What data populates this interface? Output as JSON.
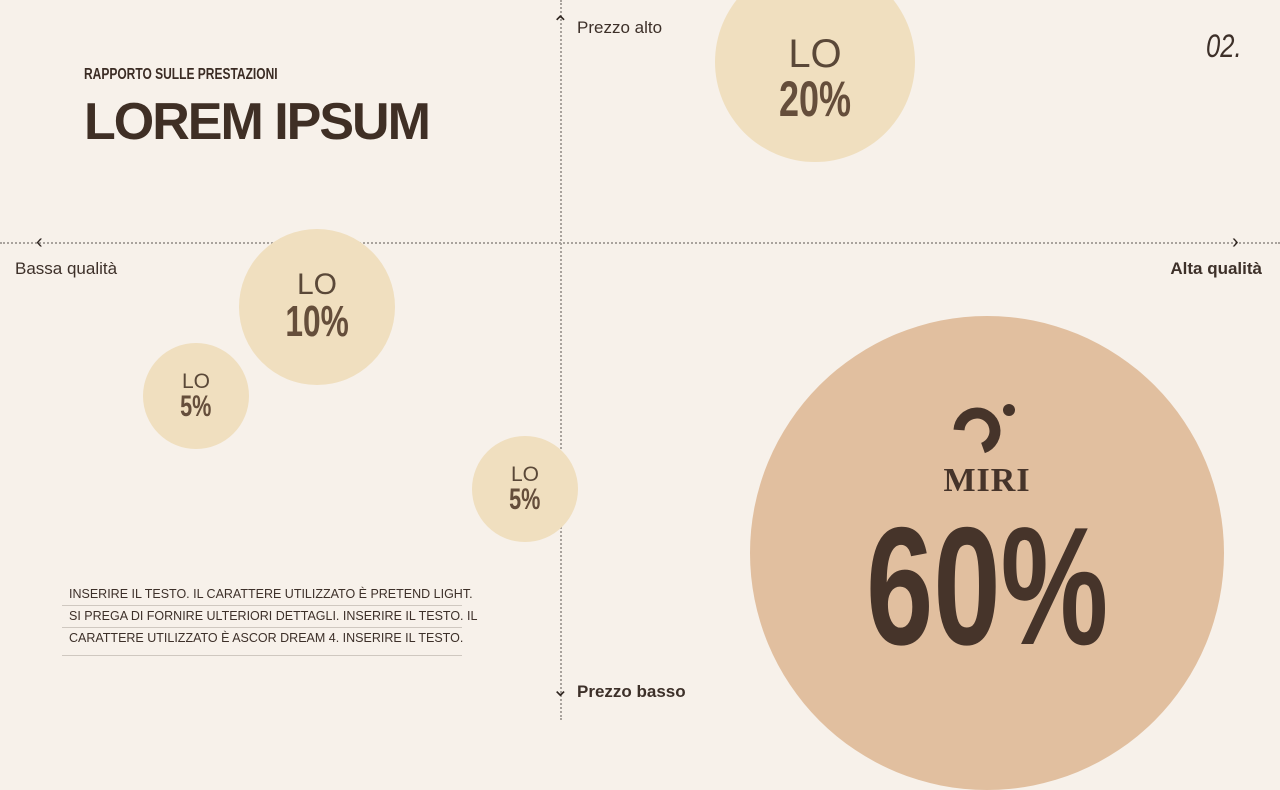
{
  "header": {
    "subtitle": "RAPPORTO SULLE PRESTAZIONI",
    "title": "LOREM IPSUM",
    "page_number": "02."
  },
  "axes": {
    "top": "Prezzo alto",
    "bottom": "Prezzo basso",
    "left": "Bassa qualità",
    "right": "Alta qualità"
  },
  "bubbles": [
    {
      "label": "LO",
      "value": "20%",
      "color": "#f0dfbf"
    },
    {
      "label": "LO",
      "value": "10%",
      "color": "#f0dfbf"
    },
    {
      "label": "LO",
      "value": "5%",
      "color": "#f0dfbf"
    },
    {
      "label": "LO",
      "value": "5%",
      "color": "#f0dfbf"
    },
    {
      "label": "MIRI",
      "value": "60%",
      "color": "#e1bf9f"
    }
  ],
  "note_lines": [
    "INSERIRE IL TESTO. IL CARATTERE UTILIZZATO È PRETEND LIGHT.",
    "SI PREGA DI FORNIRE ULTERIORI DETTAGLI. INSERIRE IL TESTO. IL",
    "CARATTERE UTILIZZATO È ASCOR DREAM 4. INSERIRE IL TESTO."
  ],
  "colors": {
    "background": "#f7f1ea",
    "text": "#46342a"
  }
}
